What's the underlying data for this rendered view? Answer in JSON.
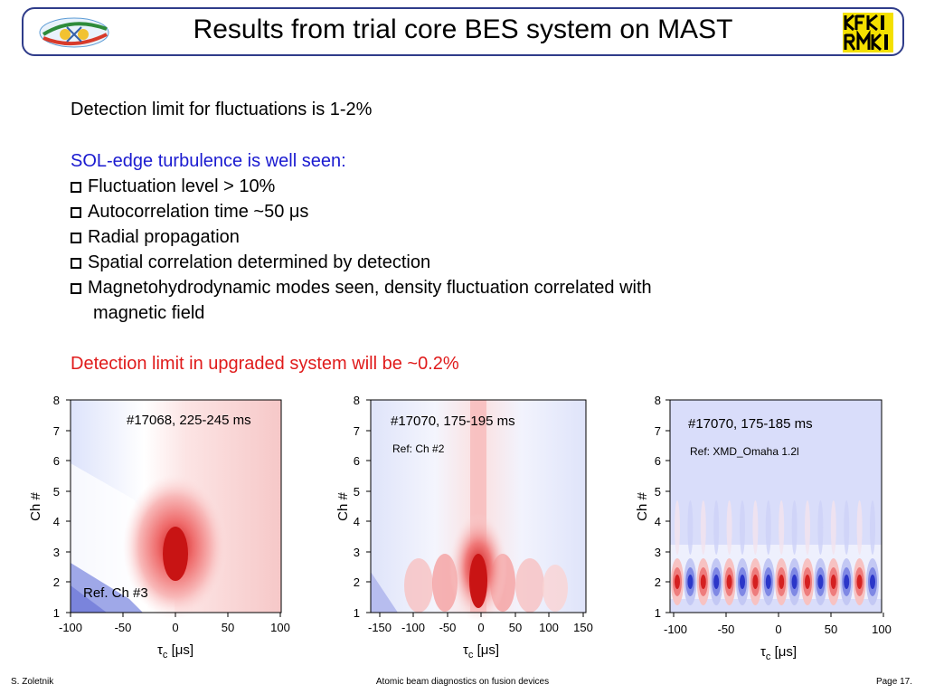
{
  "header": {
    "title": "Results from trial core BES system on MAST",
    "logo_left_icon": "conference-logo-icon",
    "logo_right_text": "KFKI RMKI"
  },
  "body": {
    "line1": "Detection limit for fluctuations is 1-2%",
    "sol_heading": "SOL-edge turbulence is well seen:",
    "bullets": [
      "Fluctuation level > 10%",
      "Autocorrelation time ~50 μs",
      "Radial propagation",
      "Spatial correlation determined by detection",
      "Magnetohydrodynamic modes seen, density fluctuation correlated with",
      "magnetic field"
    ],
    "upgrade_line": "Detection limit in upgraded system will be ~0.2%"
  },
  "panels": [
    {
      "label": "#17068, 225-245 ms",
      "ref": "Ref. Ch #3",
      "ylabel": "Ch #",
      "xlabel_main": "τ",
      "xlabel_sub": "c",
      "xlabel_unit": "[μs]",
      "xticks": [
        "-100",
        "-50",
        "0",
        "50",
        "100"
      ],
      "yticks": [
        "1",
        "2",
        "3",
        "4",
        "5",
        "6",
        "7",
        "8"
      ]
    },
    {
      "label": "#17070, 175-195 ms",
      "ref": "Ref: Ch #2",
      "ylabel": "Ch #",
      "xlabel_main": "τ",
      "xlabel_sub": "c",
      "xlabel_unit": "[μs]",
      "xticks": [
        "-150",
        "-100",
        "-50",
        "0",
        "50",
        "100",
        "150"
      ],
      "yticks": [
        "1",
        "2",
        "3",
        "4",
        "5",
        "6",
        "7",
        "8"
      ]
    },
    {
      "label": "#17070, 175-185 ms",
      "ref": "Ref: XMD_Omaha 1.2l",
      "ylabel": "Ch #",
      "xlabel_main": "τ",
      "xlabel_sub": "c",
      "xlabel_unit": "[μs]",
      "xticks": [
        "-100",
        "-50",
        "0",
        "50",
        "100"
      ],
      "yticks": [
        "1",
        "2",
        "3",
        "4",
        "5",
        "6",
        "7",
        "8"
      ]
    }
  ],
  "footer": {
    "author": "S. Zoletnik",
    "center": "Atomic beam diagnostics on fusion devices",
    "page": "Page  17."
  },
  "colors": {
    "border": "#2f3c8a",
    "blue_text": "#1a1ad0",
    "red_text": "#e01b1b"
  }
}
